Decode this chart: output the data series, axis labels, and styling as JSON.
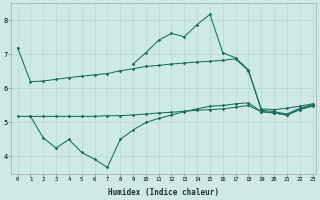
{
  "xlabel": "Humidex (Indice chaleur)",
  "background_color": "#ceeae4",
  "grid_color": "#b8d8d2",
  "line_color": "#1a6b5e",
  "xlim": [
    -0.5,
    23.3
  ],
  "ylim": [
    3.5,
    8.5
  ],
  "yticks": [
    4,
    5,
    6,
    7,
    8
  ],
  "xticks": [
    0,
    1,
    2,
    3,
    4,
    5,
    6,
    7,
    8,
    9,
    10,
    11,
    12,
    13,
    14,
    15,
    16,
    17,
    18,
    19,
    20,
    21,
    22,
    23
  ],
  "line1_x": [
    0,
    1,
    2,
    3,
    4,
    5,
    6,
    7,
    8,
    9,
    10,
    11,
    12,
    13,
    14,
    15,
    16,
    17,
    18,
    19,
    20,
    21,
    22,
    23
  ],
  "line1_y": [
    7.2,
    6.2,
    6.22,
    6.27,
    6.32,
    6.36,
    6.4,
    6.44,
    6.52,
    6.58,
    6.65,
    6.68,
    6.72,
    6.75,
    6.78,
    6.8,
    6.83,
    6.87,
    6.52,
    5.4,
    5.38,
    5.42,
    5.48,
    5.55
  ],
  "line2_x": [
    0,
    1,
    2,
    3,
    4,
    5,
    6,
    7,
    8,
    9,
    10,
    11,
    12,
    13,
    14,
    15,
    16,
    17,
    18,
    19,
    20,
    21,
    22,
    23
  ],
  "line2_y": [
    5.18,
    5.18,
    5.18,
    5.18,
    5.18,
    5.18,
    5.18,
    5.2,
    5.2,
    5.22,
    5.25,
    5.28,
    5.3,
    5.33,
    5.36,
    5.38,
    5.4,
    5.45,
    5.5,
    5.32,
    5.28,
    5.22,
    5.38,
    5.48
  ],
  "line3_x": [
    1,
    2,
    3,
    4,
    5,
    6,
    7,
    8,
    9,
    10,
    11,
    12,
    13,
    14,
    15,
    16,
    17,
    18,
    19,
    20,
    21,
    22,
    23
  ],
  "line3_y": [
    5.18,
    4.55,
    4.25,
    4.5,
    4.12,
    3.92,
    3.68,
    4.5,
    4.78,
    5.0,
    5.12,
    5.22,
    5.32,
    5.4,
    5.48,
    5.5,
    5.55,
    5.58,
    5.32,
    5.28,
    5.22,
    5.38,
    5.52
  ],
  "line4_x": [
    9,
    10,
    11,
    12,
    13,
    14,
    15,
    16,
    17,
    18,
    19,
    20,
    21,
    22,
    23
  ],
  "line4_y": [
    6.72,
    7.05,
    7.42,
    7.62,
    7.52,
    7.88,
    8.18,
    7.05,
    6.9,
    6.55,
    5.36,
    5.32,
    5.25,
    5.42,
    5.52
  ]
}
